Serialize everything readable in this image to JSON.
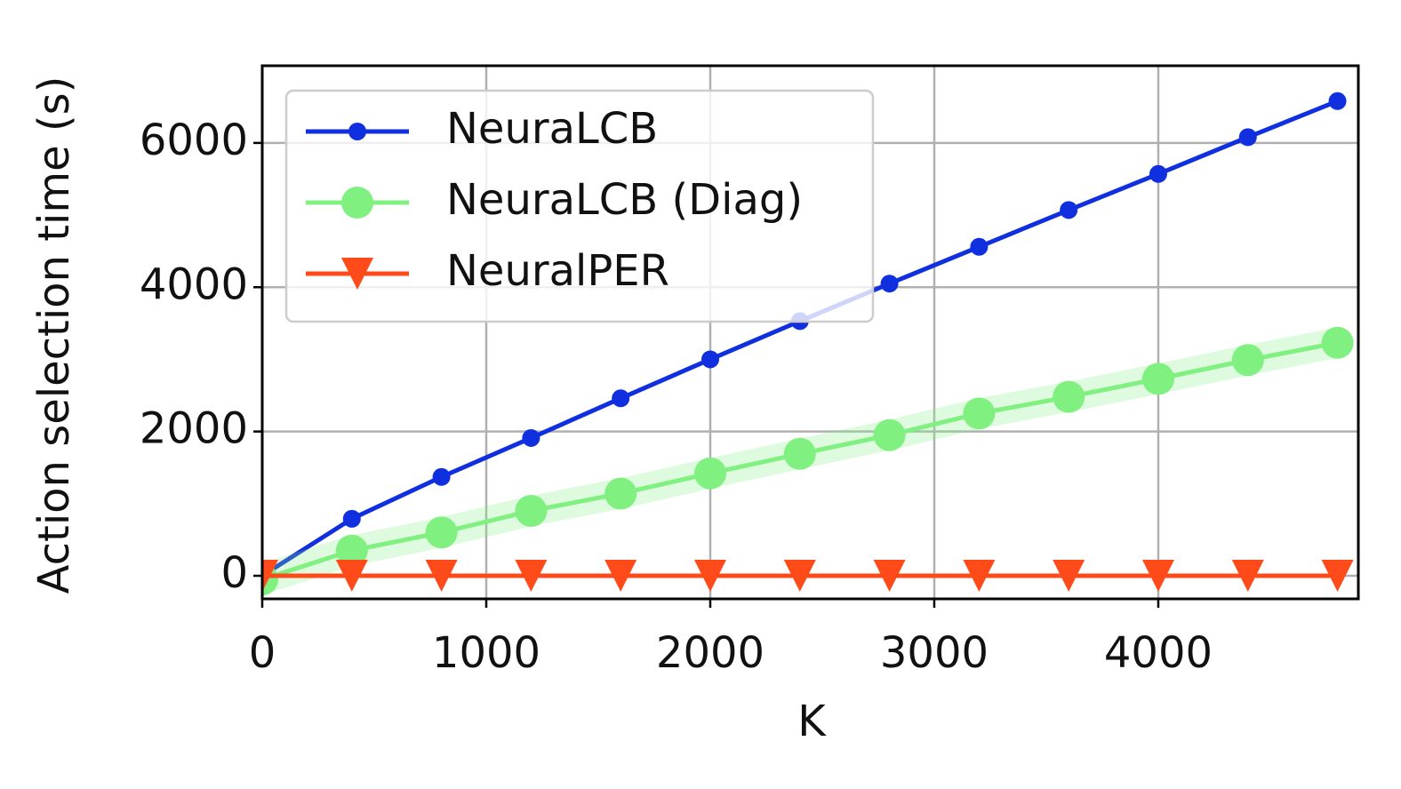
{
  "chart_data": {
    "type": "line",
    "xlabel": "K",
    "ylabel": "Action selection time (s)",
    "x": [
      0,
      400,
      800,
      1200,
      1600,
      2000,
      2400,
      2800,
      3200,
      3600,
      4000,
      4400,
      4800
    ],
    "series": [
      {
        "name": "NeuraLCB",
        "color": "#1030e0",
        "marker": "circle-small",
        "values": [
          0,
          790,
          1370,
          1910,
          2460,
          3000,
          3530,
          4050,
          4560,
          5070,
          5570,
          6080,
          6580
        ]
      },
      {
        "name": "NeuraLCB (Diag)",
        "color": "#80f080",
        "marker": "circle-large",
        "values": [
          -50,
          350,
          600,
          900,
          1140,
          1420,
          1690,
          1950,
          2250,
          2480,
          2730,
          2990,
          3230
        ]
      },
      {
        "name": "NeuralPER",
        "color": "#ff4a1a",
        "marker": "triangle-down",
        "values": [
          0,
          0,
          0,
          0,
          0,
          0,
          0,
          0,
          0,
          0,
          0,
          0,
          0
        ]
      }
    ],
    "xlim": [
      0,
      4893
    ],
    "ylim": [
      -320,
      7070
    ],
    "xticks": [
      0,
      1000,
      2000,
      3000,
      4000
    ],
    "yticks": [
      0,
      2000,
      4000,
      6000
    ],
    "grid": true,
    "legend": "upper-left"
  }
}
